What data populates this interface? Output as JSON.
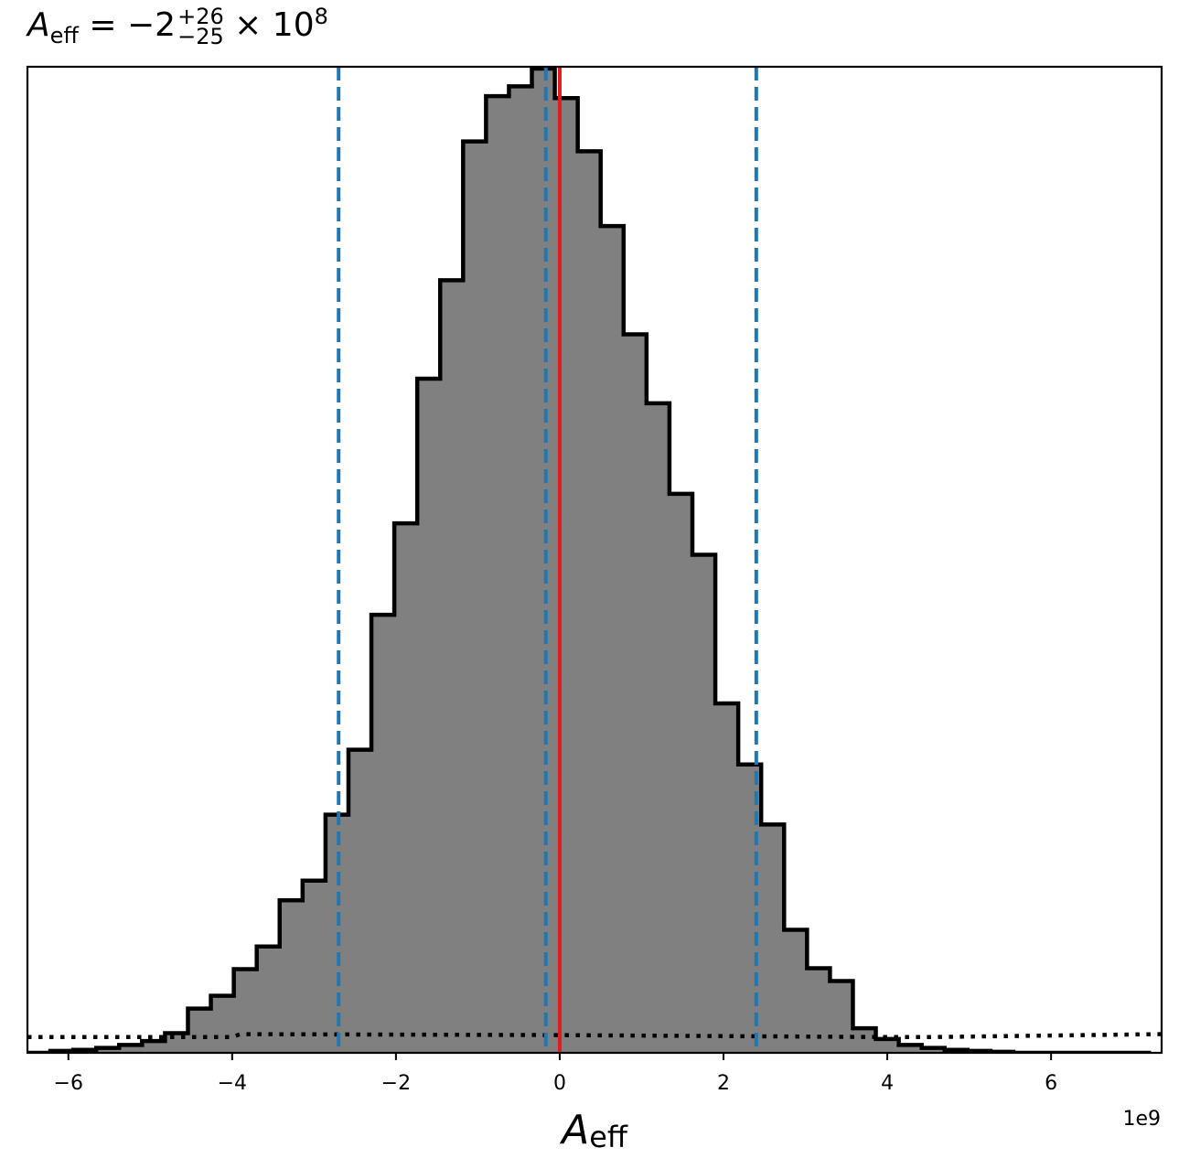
{
  "chart_data": {
    "type": "bar",
    "title": {
      "symbol": "A",
      "subscript": "eff",
      "equals": " = −2",
      "sup": "+26",
      "sub": "−25",
      "tail": " × 10",
      "exponent": "8"
    },
    "xlabel": {
      "symbol": "A",
      "subscript": "eff"
    },
    "x_offset_label": "1e9",
    "xlim": [
      -6.5,
      7.35
    ],
    "ylim": [
      0,
      1.0
    ],
    "x_ticks": [
      -6,
      -4,
      -2,
      0,
      2,
      4,
      6
    ],
    "x_tick_labels": [
      "−6",
      "−4",
      "−2",
      "0",
      "2",
      "4",
      "6"
    ],
    "y_ticks_visible": false,
    "histogram": {
      "fill_color": "#808080",
      "edge_color": "#000000",
      "bin_edges": [
        -6.5,
        -6.22,
        -5.94,
        -5.66,
        -5.38,
        -5.1,
        -4.82,
        -4.54,
        -4.26,
        -3.98,
        -3.7,
        -3.42,
        -3.14,
        -2.86,
        -2.58,
        -2.3,
        -2.02,
        -1.74,
        -1.46,
        -1.18,
        -0.9,
        -0.62,
        -0.34,
        -0.06,
        0.22,
        0.5,
        0.78,
        1.06,
        1.34,
        1.62,
        1.9,
        2.18,
        2.46,
        2.74,
        3.02,
        3.3,
        3.58,
        3.86,
        4.14,
        4.42,
        4.7,
        4.98,
        5.26,
        5.54,
        5.82,
        6.1,
        6.38,
        6.66,
        6.94,
        7.22
      ],
      "counts": [
        0.0,
        0.002,
        0.003,
        0.005,
        0.008,
        0.012,
        0.02,
        0.045,
        0.058,
        0.085,
        0.108,
        0.155,
        0.175,
        0.242,
        0.308,
        0.445,
        0.538,
        0.685,
        0.785,
        0.926,
        0.972,
        0.982,
        1.0,
        0.97,
        0.916,
        0.84,
        0.73,
        0.66,
        0.568,
        0.506,
        0.355,
        0.293,
        0.232,
        0.125,
        0.086,
        0.073,
        0.025,
        0.014,
        0.008,
        0.005,
        0.003,
        0.002,
        0.001,
        0.0,
        0.0,
        0.0,
        0.0,
        0.0,
        0.0
      ]
    },
    "vertical_lines": [
      {
        "name": "truth",
        "x": 0.0,
        "color": "#e41a1c",
        "style": "solid"
      },
      {
        "name": "lower-quantile",
        "x": -2.7,
        "color": "#1f77b4",
        "style": "dashed"
      },
      {
        "name": "median",
        "x": -0.17,
        "color": "#1f77b4",
        "style": "dashed"
      },
      {
        "name": "upper-quantile",
        "x": 2.4,
        "color": "#1f77b4",
        "style": "dashed"
      }
    ],
    "prior_line": {
      "color": "#000000",
      "style": "dotted",
      "points": [
        [
          -6.5,
          0.016
        ],
        [
          -4.0,
          0.016
        ],
        [
          -3.9,
          0.019
        ],
        [
          0.0,
          0.018
        ],
        [
          4.0,
          0.016
        ],
        [
          4.5,
          0.016
        ],
        [
          7.35,
          0.019
        ]
      ]
    }
  }
}
